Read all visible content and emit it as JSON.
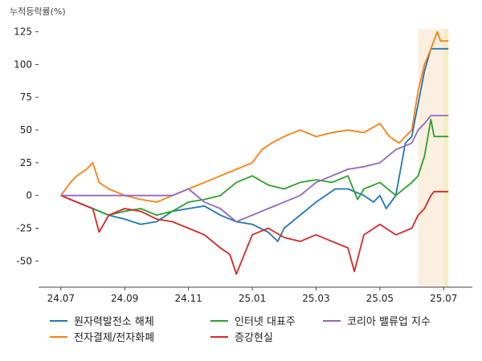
{
  "chart_data": {
    "type": "line",
    "unit_label": "누적등락률(%)",
    "x_ticks": [
      "24.07",
      "24.09",
      "24.11",
      "25.01",
      "25.03",
      "25.05",
      "25.07"
    ],
    "y_ticks": [
      125,
      100,
      75,
      50,
      25,
      0,
      -25,
      -50
    ],
    "ylim": [
      -70,
      137
    ],
    "grid": false,
    "legend_position": "bottom",
    "highlight_band": {
      "start_month": 11.2,
      "end_month": 12.15,
      "fill_color": "#fbefe0",
      "inner_fill_color": "#f6ecc4"
    },
    "series": [
      {
        "name": "원자력발전소 해체",
        "color": "#1f77b4",
        "points": [
          [
            0,
            0
          ],
          [
            0.5,
            -5
          ],
          [
            1,
            -10
          ],
          [
            1.5,
            -15
          ],
          [
            2,
            -18
          ],
          [
            2.5,
            -22
          ],
          [
            3,
            -20
          ],
          [
            3.5,
            -12
          ],
          [
            4,
            -10
          ],
          [
            4.5,
            -8
          ],
          [
            5,
            -15
          ],
          [
            5.5,
            -20
          ],
          [
            6,
            -22
          ],
          [
            6.5,
            -28
          ],
          [
            6.8,
            -35
          ],
          [
            7,
            -25
          ],
          [
            7.5,
            -15
          ],
          [
            8,
            -5
          ],
          [
            8.3,
            0
          ],
          [
            8.6,
            5
          ],
          [
            9,
            5
          ],
          [
            9.5,
            0
          ],
          [
            9.8,
            -5
          ],
          [
            10,
            0
          ],
          [
            10.2,
            -10
          ],
          [
            10.5,
            0
          ],
          [
            10.8,
            40
          ],
          [
            11,
            45
          ],
          [
            11.2,
            70
          ],
          [
            11.4,
            95
          ],
          [
            11.6,
            112
          ],
          [
            12.15,
            112
          ]
        ]
      },
      {
        "name": "전자결제/전자화폐",
        "color": "#ff7f0e",
        "points": [
          [
            0,
            0
          ],
          [
            0.3,
            10
          ],
          [
            0.5,
            15
          ],
          [
            0.8,
            20
          ],
          [
            1,
            25
          ],
          [
            1.2,
            10
          ],
          [
            1.5,
            5
          ],
          [
            2,
            0
          ],
          [
            2.5,
            -3
          ],
          [
            3,
            -5
          ],
          [
            3.5,
            0
          ],
          [
            4,
            5
          ],
          [
            4.5,
            10
          ],
          [
            5,
            15
          ],
          [
            5.5,
            20
          ],
          [
            6,
            25
          ],
          [
            6.3,
            35
          ],
          [
            6.6,
            40
          ],
          [
            7,
            45
          ],
          [
            7.5,
            50
          ],
          [
            8,
            45
          ],
          [
            8.5,
            48
          ],
          [
            9,
            50
          ],
          [
            9.5,
            48
          ],
          [
            10,
            55
          ],
          [
            10.3,
            45
          ],
          [
            10.6,
            40
          ],
          [
            11,
            50
          ],
          [
            11.2,
            80
          ],
          [
            11.4,
            100
          ],
          [
            11.6,
            112
          ],
          [
            11.8,
            125
          ],
          [
            11.9,
            118
          ],
          [
            12.15,
            118
          ]
        ]
      },
      {
        "name": "인터넷 대표주",
        "color": "#2ca02c",
        "points": [
          [
            0,
            0
          ],
          [
            0.5,
            -5
          ],
          [
            1,
            -10
          ],
          [
            1.5,
            -15
          ],
          [
            2,
            -12
          ],
          [
            2.5,
            -10
          ],
          [
            3,
            -15
          ],
          [
            3.5,
            -12
          ],
          [
            4,
            -5
          ],
          [
            4.5,
            -3
          ],
          [
            5,
            0
          ],
          [
            5.5,
            10
          ],
          [
            6,
            15
          ],
          [
            6.5,
            8
          ],
          [
            7,
            5
          ],
          [
            7.5,
            10
          ],
          [
            8,
            12
          ],
          [
            8.5,
            10
          ],
          [
            9,
            15
          ],
          [
            9.3,
            -3
          ],
          [
            9.5,
            5
          ],
          [
            10,
            10
          ],
          [
            10.5,
            0
          ],
          [
            11,
            10
          ],
          [
            11.2,
            15
          ],
          [
            11.4,
            30
          ],
          [
            11.6,
            58
          ],
          [
            11.7,
            45
          ],
          [
            12.15,
            45
          ]
        ]
      },
      {
        "name": "증강현실",
        "color": "#d62728",
        "points": [
          [
            0,
            0
          ],
          [
            0.5,
            -5
          ],
          [
            1,
            -10
          ],
          [
            1.2,
            -28
          ],
          [
            1.5,
            -15
          ],
          [
            2,
            -10
          ],
          [
            2.5,
            -12
          ],
          [
            3,
            -18
          ],
          [
            3.5,
            -20
          ],
          [
            4,
            -25
          ],
          [
            4.5,
            -30
          ],
          [
            5,
            -40
          ],
          [
            5.3,
            -45
          ],
          [
            5.5,
            -60
          ],
          [
            6,
            -30
          ],
          [
            6.5,
            -25
          ],
          [
            7,
            -32
          ],
          [
            7.5,
            -35
          ],
          [
            8,
            -30
          ],
          [
            8.5,
            -35
          ],
          [
            9,
            -40
          ],
          [
            9.2,
            -58
          ],
          [
            9.5,
            -30
          ],
          [
            10,
            -22
          ],
          [
            10.5,
            -30
          ],
          [
            11,
            -25
          ],
          [
            11.2,
            -15
          ],
          [
            11.4,
            -10
          ],
          [
            11.6,
            0
          ],
          [
            11.7,
            3
          ],
          [
            12.15,
            3
          ]
        ]
      },
      {
        "name": "코리아 밸류업 지수",
        "color": "#9467bd",
        "points": [
          [
            0,
            0
          ],
          [
            0.5,
            0
          ],
          [
            1,
            0
          ],
          [
            2,
            0
          ],
          [
            3,
            0
          ],
          [
            3.5,
            0
          ],
          [
            4,
            5
          ],
          [
            4.5,
            -5
          ],
          [
            5,
            -10
          ],
          [
            5.5,
            -20
          ],
          [
            6,
            -15
          ],
          [
            6.5,
            -10
          ],
          [
            7,
            -5
          ],
          [
            7.5,
            0
          ],
          [
            8,
            10
          ],
          [
            8.5,
            15
          ],
          [
            9,
            20
          ],
          [
            9.5,
            22
          ],
          [
            10,
            25
          ],
          [
            10.5,
            35
          ],
          [
            11,
            40
          ],
          [
            11.2,
            50
          ],
          [
            11.4,
            55
          ],
          [
            11.6,
            61
          ],
          [
            12.15,
            61
          ]
        ]
      }
    ]
  }
}
